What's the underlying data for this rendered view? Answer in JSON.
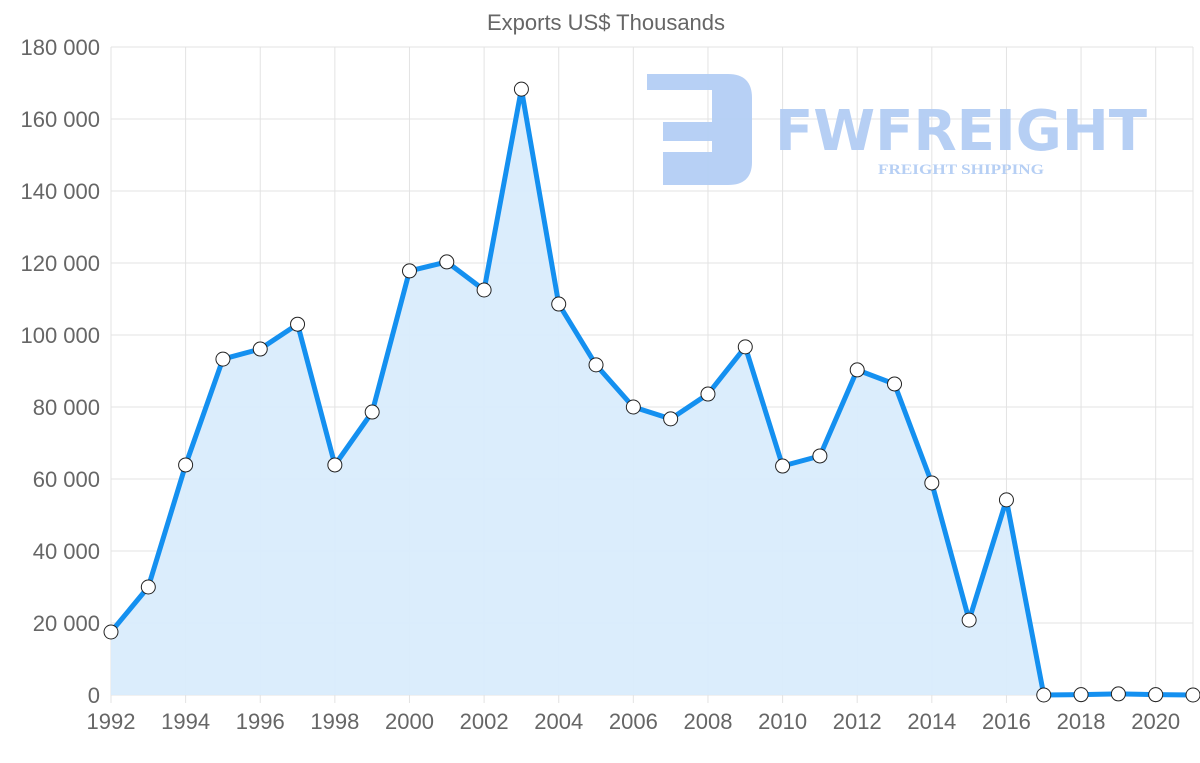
{
  "watermark": {
    "brand": "FWFREIGHT",
    "tagline": "FREIGHT SHIPPING",
    "color": "#b3cdf4"
  },
  "chart_data": {
    "type": "area",
    "title": "Exports US$ Thousands",
    "xlabel": "",
    "ylabel": "",
    "x": [
      1992,
      1993,
      1994,
      1995,
      1996,
      1997,
      1998,
      1999,
      2000,
      2001,
      2002,
      2003,
      2004,
      2005,
      2006,
      2007,
      2008,
      2009,
      2010,
      2011,
      2012,
      2013,
      2014,
      2015,
      2016,
      2017,
      2018,
      2019,
      2020,
      2021
    ],
    "series": [
      {
        "name": "Exports US$ Thousands",
        "values": [
          17500,
          30000,
          63900,
          93300,
          96100,
          103000,
          63900,
          78600,
          117800,
          120300,
          112500,
          168300,
          108600,
          91700,
          80000,
          76700,
          83600,
          96700,
          63600,
          66400,
          90300,
          86400,
          58900,
          20800,
          54200,
          0,
          100,
          300,
          100,
          0
        ],
        "color": "#1490f0",
        "fill": "#d9ecfc"
      }
    ],
    "ylim": [
      0,
      180000
    ],
    "xlim": [
      1992,
      2021
    ],
    "yticks": [
      "0",
      "20 000",
      "40 000",
      "60 000",
      "80 000",
      "100 000",
      "120 000",
      "140 000",
      "160 000",
      "180 000"
    ],
    "xticks": [
      "1992",
      "1994",
      "1996",
      "1998",
      "2000",
      "2002",
      "2004",
      "2006",
      "2008",
      "2010",
      "2012",
      "2014",
      "2016",
      "2018",
      "2020"
    ],
    "grid": true,
    "legend": "none"
  }
}
